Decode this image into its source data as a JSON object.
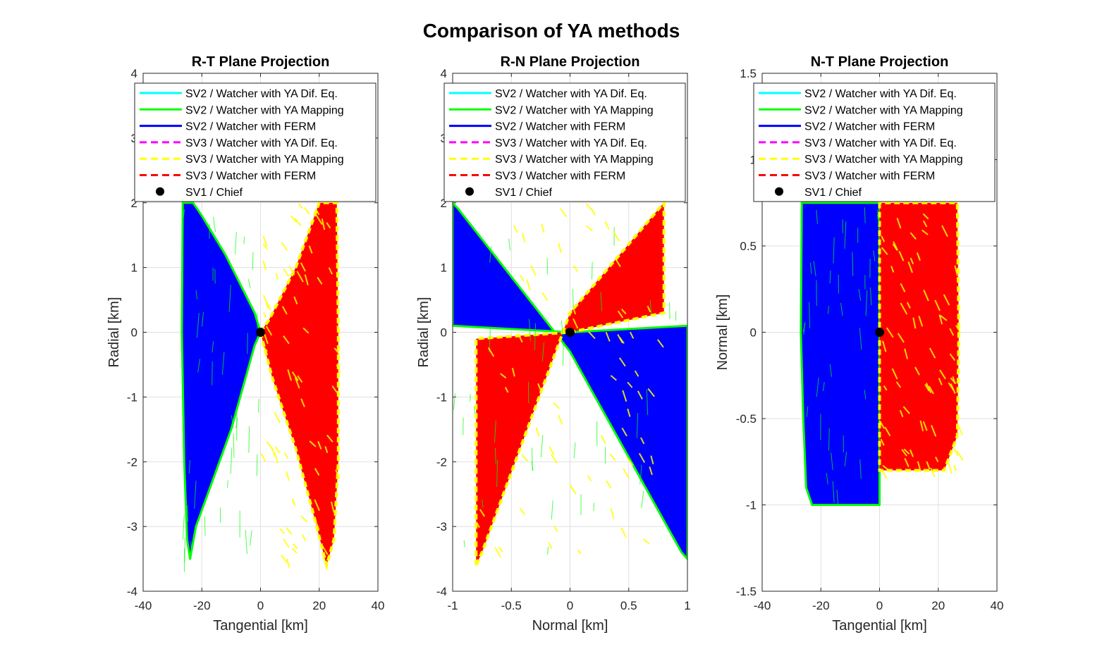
{
  "chart_data": {
    "type": "line",
    "title": "Comparison of YA methods",
    "legend": {
      "placement": "top",
      "entries": [
        {
          "label": "SV2 / Watcher with YA Dif. Eq.",
          "color": "#00FFFF",
          "style": "solid"
        },
        {
          "label": "SV2 / Watcher with YA Mapping",
          "color": "#00FF00",
          "style": "solid"
        },
        {
          "label": "SV2 / Watcher with FERM",
          "color": "#0000FF",
          "style": "solid"
        },
        {
          "label": "SV3 / Watcher with YA Dif. Eq.",
          "color": "#FF00FF",
          "style": "dashed"
        },
        {
          "label": "SV3 / Watcher with YA Mapping",
          "color": "#FFFF00",
          "style": "dashed"
        },
        {
          "label": "SV3 / Watcher with FERM",
          "color": "#FF0000",
          "style": "dashed"
        },
        {
          "label": "SV1 / Chief",
          "color": "#000000",
          "style": "marker"
        }
      ]
    },
    "subplots": [
      {
        "title": "R-T Plane Projection",
        "xlabel": "Tangential [km]",
        "ylabel": "Radial [km]",
        "xlim": [
          -40,
          40
        ],
        "ylim": [
          -4,
          4
        ],
        "xticks": [
          "-40",
          "-20",
          "0",
          "20",
          "40"
        ],
        "yticks": [
          "-4",
          "-3",
          "-2",
          "-1",
          "0",
          "1",
          "2",
          "3",
          "4"
        ],
        "grid": true,
        "series": {
          "sv2_envelope": [
            [
              -26.5,
              2.0
            ],
            [
              -26.8,
              0.0
            ],
            [
              -26.0,
              -2.0
            ],
            [
              -25.0,
              -3.2
            ],
            [
              -24.0,
              -3.5
            ],
            [
              -22.0,
              -3.0
            ],
            [
              -10.0,
              -1.5
            ],
            [
              -2.0,
              -0.2
            ],
            [
              0.0,
              0.0
            ],
            [
              -2.0,
              0.3
            ],
            [
              -12.0,
              1.2
            ],
            [
              -20.0,
              1.8
            ],
            [
              -23.0,
              2.0
            ]
          ],
          "sv3_envelope": [
            [
              0.0,
              0.0
            ],
            [
              4.0,
              -0.7
            ],
            [
              12.0,
              -1.8
            ],
            [
              18.0,
              -2.8
            ],
            [
              22.5,
              -3.6
            ],
            [
              25.0,
              -3.2
            ],
            [
              26.5,
              -2.0
            ],
            [
              26.5,
              0.0
            ],
            [
              26.0,
              2.0
            ],
            [
              20.0,
              2.0
            ],
            [
              12.0,
              1.0
            ],
            [
              3.0,
              0.2
            ]
          ],
          "chief": [
            0,
            0
          ]
        }
      },
      {
        "title": "R-N Plane Projection",
        "xlabel": "Normal [km]",
        "ylabel": "Radial [km]",
        "xlim": [
          -1,
          1
        ],
        "ylim": [
          -4,
          4
        ],
        "xticks": [
          "-1",
          "-0.5",
          "0",
          "0.5",
          "1"
        ],
        "yticks": [
          "-4",
          "-3",
          "-2",
          "-1",
          "0",
          "1",
          "2",
          "3",
          "4"
        ],
        "grid": true,
        "series": {
          "sv2_envelope": [
            [
              -1.0,
              2.0
            ],
            [
              -1.0,
              0.1
            ],
            [
              0.0,
              0.0
            ],
            [
              1.0,
              0.1
            ],
            [
              1.0,
              -3.5
            ],
            [
              0.95,
              -3.4
            ],
            [
              0.0,
              -0.3
            ],
            [
              -0.95,
              1.9
            ]
          ],
          "sv3_envelope": [
            [
              -0.8,
              -3.6
            ],
            [
              -0.8,
              -0.1
            ],
            [
              0.0,
              0.0
            ],
            [
              0.8,
              0.3
            ],
            [
              0.8,
              2.0
            ],
            [
              0.0,
              0.3
            ],
            [
              -0.75,
              -3.4
            ]
          ],
          "chief": [
            0,
            0
          ]
        }
      },
      {
        "title": "N-T Plane Projection",
        "xlabel": "Tangential [km]",
        "ylabel": "Normal [km]",
        "xlim": [
          -40,
          40
        ],
        "ylim": [
          -1.5,
          1.5
        ],
        "xticks": [
          "-40",
          "-20",
          "0",
          "20",
          "40"
        ],
        "yticks": [
          "-1.5",
          "-1",
          "-0.5",
          "0",
          "0.5",
          "1",
          "1.5"
        ],
        "grid": true,
        "series": {
          "sv2_envelope": [
            [
              -26.5,
              0.75
            ],
            [
              -26.8,
              0.0
            ],
            [
              -26.0,
              -0.5
            ],
            [
              -25.0,
              -0.9
            ],
            [
              -23.0,
              -1.0
            ],
            [
              0.0,
              -1.0
            ],
            [
              0.0,
              0.75
            ]
          ],
          "sv3_envelope": [
            [
              0.0,
              0.75
            ],
            [
              0.0,
              -0.8
            ],
            [
              22.0,
              -0.8
            ],
            [
              26.5,
              -0.6
            ],
            [
              27.0,
              0.0
            ],
            [
              26.5,
              0.75
            ]
          ],
          "chief": [
            0,
            0
          ]
        }
      }
    ]
  }
}
